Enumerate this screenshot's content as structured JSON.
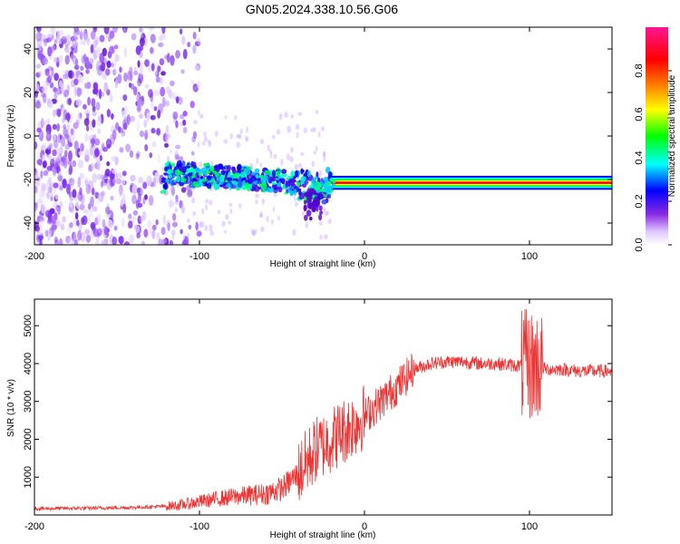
{
  "title": "GN05.2024.338.10.56.G06",
  "chart_data": [
    {
      "type": "heatmap",
      "xlabel": "Height of straight line (km)",
      "ylabel": "Frequency (Hz)",
      "xlim": [
        -200,
        150
      ],
      "ylim": [
        -50,
        50
      ],
      "x_ticks": [
        -200,
        -100,
        0,
        100
      ],
      "x_tick_labels": [
        "-200",
        "-100",
        "0",
        "100"
      ],
      "y_ticks": [
        -40,
        -20,
        0,
        20,
        40
      ],
      "y_tick_labels": [
        "-40",
        "-20",
        "0",
        "20",
        "40"
      ],
      "colorbar": {
        "label": "Normalized spectral amplitude",
        "range": [
          0.0,
          1.0
        ],
        "ticks": [
          0.0,
          0.2,
          0.4,
          0.6,
          0.8
        ],
        "tick_labels": [
          "0.0",
          "0.2",
          "0.4",
          "0.6",
          "0.8"
        ],
        "colormap": [
          "#ffffff",
          "#8a2be2",
          "#0000ff",
          "#00ffff",
          "#00ff00",
          "#ffff00",
          "#ff8c00",
          "#ff0000",
          "#ff1493"
        ]
      },
      "noise_region": {
        "x": [
          -200,
          -120
        ],
        "frequency": [
          -50,
          50
        ],
        "amplitude": 0.1
      },
      "signal_track": [
        {
          "x": -120,
          "frequency": -17
        },
        {
          "x": -100,
          "frequency": -18
        },
        {
          "x": -80,
          "frequency": -19
        },
        {
          "x": -60,
          "frequency": -20
        },
        {
          "x": -40,
          "frequency": -22
        },
        {
          "x": -30,
          "frequency": -25
        },
        {
          "x": -20,
          "frequency": -22
        },
        {
          "x": 0,
          "frequency": -21.5
        },
        {
          "x": 50,
          "frequency": -21.5
        },
        {
          "x": 100,
          "frequency": -21.5
        },
        {
          "x": 150,
          "frequency": -21.5
        }
      ]
    },
    {
      "type": "line",
      "xlabel": "Height of straight line (km)",
      "ylabel": "SNR (10 * v/v)",
      "xlim": [
        -200,
        150
      ],
      "ylim": [
        0,
        5700
      ],
      "x_ticks": [
        -200,
        -100,
        0,
        100
      ],
      "x_tick_labels": [
        "-200",
        "-100",
        "0",
        "100"
      ],
      "y_ticks": [
        1000,
        2000,
        3000,
        4000,
        5000
      ],
      "y_tick_labels": [
        "1000",
        "2000",
        "3000",
        "4000",
        "5000"
      ],
      "color": "#ee3333",
      "series": [
        {
          "x": [
            -200,
            -180,
            -160,
            -140,
            -120,
            -110,
            -100,
            -90,
            -80,
            -70,
            -60,
            -50,
            -40,
            -30,
            -20,
            -10,
            0,
            10,
            20,
            30,
            40,
            50,
            60,
            70,
            80,
            90,
            95,
            100,
            105,
            110,
            120,
            130,
            140,
            150
          ],
          "y": [
            170,
            175,
            185,
            200,
            230,
            270,
            350,
            420,
            480,
            520,
            560,
            700,
            1100,
            1700,
            2000,
            2300,
            2600,
            3000,
            3400,
            3850,
            4000,
            4050,
            4050,
            4000,
            4000,
            3950,
            3950,
            3950,
            3950,
            3850,
            3850,
            3800,
            3800,
            3800
          ]
        }
      ]
    }
  ]
}
